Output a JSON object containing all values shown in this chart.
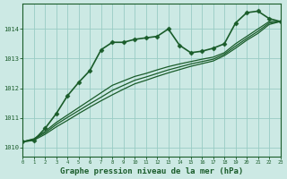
{
  "title": "Graphe pression niveau de la mer (hPa)",
  "background_color": "#cce9e4",
  "grid_color": "#99ccc4",
  "line_color": "#1a5c2a",
  "x_min": 0,
  "x_max": 23,
  "y_min": 1009.7,
  "y_max": 1014.85,
  "y_ticks": [
    1010,
    1011,
    1012,
    1013,
    1014
  ],
  "series": [
    {
      "x": [
        0,
        1,
        2,
        3,
        4,
        5,
        6,
        7,
        8,
        9,
        10,
        11,
        12,
        13,
        14,
        15,
        16,
        17,
        18,
        19,
        20,
        21,
        22,
        23
      ],
      "y": [
        1010.2,
        1010.25,
        1010.65,
        1011.15,
        1011.75,
        1012.2,
        1012.6,
        1013.3,
        1013.55,
        1013.55,
        1013.65,
        1013.7,
        1013.75,
        1014.0,
        1013.45,
        1013.2,
        1013.25,
        1013.35,
        1013.5,
        1014.2,
        1014.55,
        1014.6,
        1014.35,
        1014.25
      ],
      "marker": "D",
      "markersize": 2.5,
      "linewidth": 1.2
    },
    {
      "x": [
        0,
        1,
        2,
        3,
        4,
        5,
        6,
        7,
        8,
        9,
        10,
        11,
        12,
        13,
        14,
        15,
        16,
        17,
        18,
        19,
        20,
        21,
        22,
        23
      ],
      "y": [
        1010.2,
        1010.3,
        1010.55,
        1010.85,
        1011.1,
        1011.35,
        1011.6,
        1011.85,
        1012.1,
        1012.25,
        1012.4,
        1012.5,
        1012.62,
        1012.73,
        1012.82,
        1012.9,
        1012.98,
        1013.05,
        1013.2,
        1013.5,
        1013.75,
        1014.0,
        1014.25,
        1014.25
      ],
      "marker": null,
      "linewidth": 0.9
    },
    {
      "x": [
        0,
        1,
        2,
        3,
        4,
        5,
        6,
        7,
        8,
        9,
        10,
        11,
        12,
        13,
        14,
        15,
        16,
        17,
        18,
        19,
        20,
        21,
        22,
        23
      ],
      "y": [
        1010.2,
        1010.28,
        1010.5,
        1010.78,
        1011.02,
        1011.25,
        1011.48,
        1011.7,
        1011.93,
        1012.1,
        1012.27,
        1012.38,
        1012.5,
        1012.62,
        1012.72,
        1012.82,
        1012.9,
        1012.98,
        1013.15,
        1013.42,
        1013.68,
        1013.92,
        1014.2,
        1014.25
      ],
      "marker": null,
      "linewidth": 0.9
    },
    {
      "x": [
        0,
        1,
        2,
        3,
        4,
        5,
        6,
        7,
        8,
        9,
        10,
        11,
        12,
        13,
        14,
        15,
        16,
        17,
        18,
        19,
        20,
        21,
        22,
        23
      ],
      "y": [
        1010.2,
        1010.25,
        1010.45,
        1010.7,
        1010.92,
        1011.15,
        1011.37,
        1011.58,
        1011.78,
        1011.97,
        1012.15,
        1012.27,
        1012.4,
        1012.52,
        1012.63,
        1012.74,
        1012.83,
        1012.92,
        1013.1,
        1013.35,
        1013.62,
        1013.85,
        1014.15,
        1014.25
      ],
      "marker": null,
      "linewidth": 0.9
    }
  ]
}
